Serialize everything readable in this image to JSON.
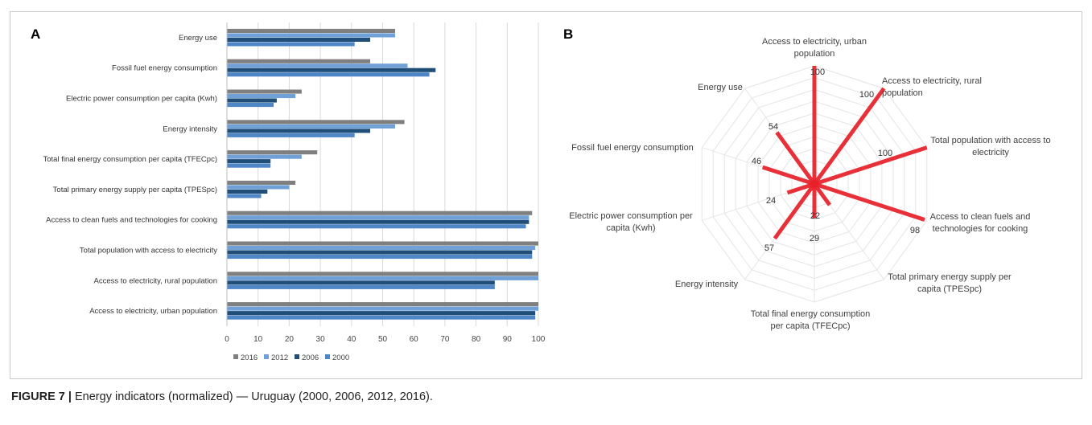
{
  "figure": {
    "panel_a_label": "A",
    "panel_b_label": "B",
    "caption_label": "FIGURE 7 |",
    "caption_text": " Energy indicators (normalized) — Uruguay (2000, 2006, 2012, 2016)."
  },
  "colors": {
    "s2016": "#7f7f7f",
    "s2012": "#6fa0d8",
    "s2006": "#1f4e79",
    "s2000": "#4f86c6",
    "radar": "#e8202a",
    "grid": "#d9d9d9"
  },
  "chart_data": [
    {
      "type": "bar",
      "orientation": "horizontal",
      "categories": [
        "Energy use",
        "Fossil fuel energy consumption",
        "Electric power consumption per capita (Kwh)",
        "Energy intensity",
        "Total final energy consumption per capita (TFECpc)",
        "Total primary energy supply per capita (TPESpc)",
        "Access to clean fuels and technologies for cooking",
        "Total population with access to electricity",
        "Access to electricity, rural population",
        "Access to electricity, urban population"
      ],
      "series": [
        {
          "name": "2016",
          "values": [
            54,
            46,
            24,
            57,
            29,
            22,
            98,
            100,
            100,
            100
          ]
        },
        {
          "name": "2012",
          "values": [
            54,
            58,
            22,
            54,
            24,
            20,
            97,
            99,
            100,
            100
          ]
        },
        {
          "name": "2006",
          "values": [
            46,
            67,
            16,
            46,
            14,
            13,
            97,
            98,
            86,
            99
          ]
        },
        {
          "name": "2000",
          "values": [
            41,
            65,
            15,
            41,
            14,
            11,
            96,
            98,
            86,
            99
          ]
        }
      ],
      "xlim": [
        0,
        100
      ],
      "xticks": [
        0,
        10,
        20,
        30,
        40,
        50,
        60,
        70,
        80,
        90,
        100
      ],
      "grid": true,
      "legend": "bottom"
    },
    {
      "type": "radar",
      "categories": [
        "Access to electricity, urban population",
        "Access to electricity, rural population",
        "Total population with access to electricity",
        "Access to clean fuels and technologies for cooking",
        "Total primary energy supply per capita (TPESpc)",
        "Total final energy consumption per capita (TFECpc)",
        "Energy intensity",
        "Electric power consumption per capita (Kwh)",
        "Fossil fuel energy consumption",
        "Energy use"
      ],
      "values": [
        100,
        100,
        100,
        98,
        22,
        29,
        57,
        24,
        46,
        54
      ],
      "range": [
        0,
        100
      ],
      "rings": 10
    }
  ]
}
